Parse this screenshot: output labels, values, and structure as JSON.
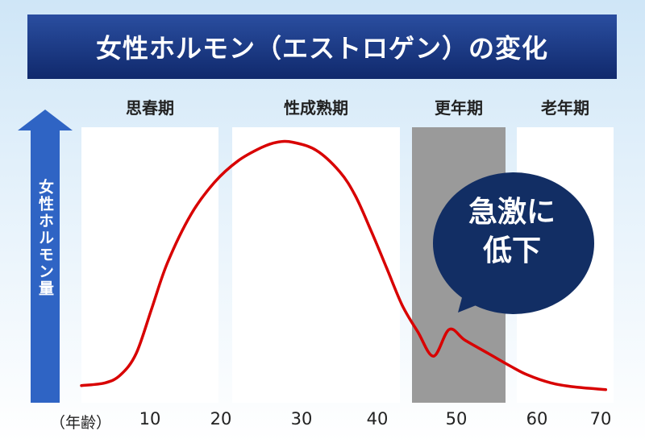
{
  "title": "女性ホルモン（エストロゲン）の変化",
  "stages": [
    {
      "label": "思春期",
      "shaded": false
    },
    {
      "label": "性成熟期",
      "shaded": false
    },
    {
      "label": "更年期",
      "shaded": true
    },
    {
      "label": "老年期",
      "shaded": false
    }
  ],
  "callout": {
    "line1": "急激に",
    "line2": "低下"
  },
  "colors": {
    "curve": "#d80000",
    "title_bg": "#10296c",
    "arrow": "#2f64c4",
    "bubble": "#122e64",
    "shaded": "#9a9a9a"
  },
  "chart_data": {
    "type": "line",
    "title": "女性ホルモン（エストロゲン）の変化",
    "xlabel": "（年齢）",
    "ylabel": "女性ホルモン量",
    "xticks": [
      "10",
      "20",
      "30",
      "40",
      "50",
      "60",
      "70"
    ],
    "xlim": [
      3,
      71
    ],
    "ylim": [
      0,
      1
    ],
    "grid": false,
    "series": [
      {
        "x": [
          3,
          6,
          8,
          10,
          12,
          14,
          17,
          20,
          23,
          26,
          28,
          30,
          33,
          36,
          38,
          40,
          42,
          44,
          46,
          48,
          50,
          52,
          55,
          58,
          60,
          63,
          66,
          70
        ],
        "y": [
          0.04,
          0.05,
          0.08,
          0.16,
          0.33,
          0.5,
          0.68,
          0.8,
          0.88,
          0.93,
          0.95,
          0.95,
          0.92,
          0.84,
          0.75,
          0.62,
          0.48,
          0.34,
          0.24,
          0.15,
          0.25,
          0.21,
          0.16,
          0.11,
          0.08,
          0.05,
          0.035,
          0.025
        ]
      }
    ]
  }
}
